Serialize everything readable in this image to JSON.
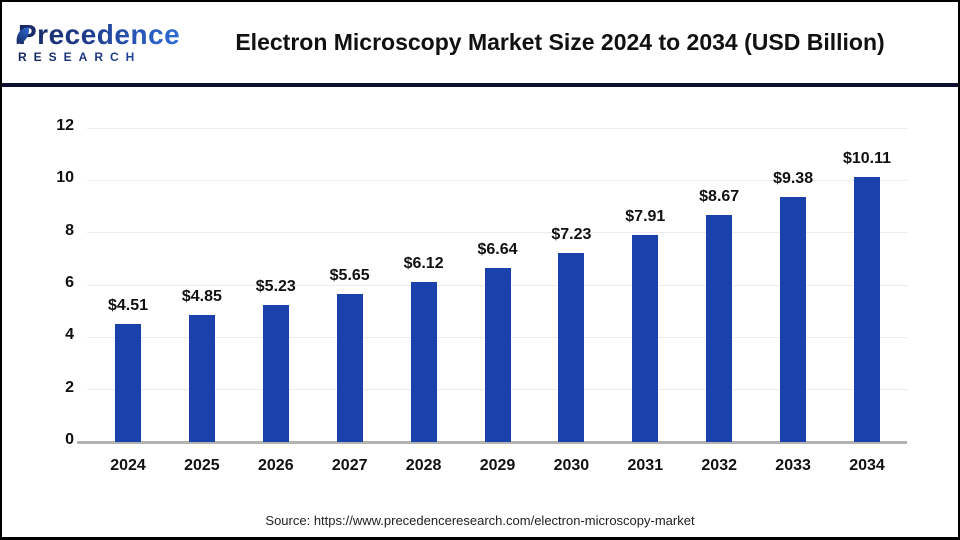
{
  "header": {
    "logo": {
      "line1": "Precedence",
      "line2": "RESEARCH"
    },
    "title": "Electron Microscopy Market Size 2024 to 2034 (USD Billion)"
  },
  "chart_data": {
    "type": "bar",
    "title": "Electron Microscopy Market Size 2024 to 2034 (USD Billion)",
    "categories": [
      "2024",
      "2025",
      "2026",
      "2027",
      "2028",
      "2029",
      "2030",
      "2031",
      "2032",
      "2033",
      "2034"
    ],
    "values": [
      4.51,
      4.85,
      5.23,
      5.65,
      6.12,
      6.64,
      7.23,
      7.91,
      8.67,
      9.38,
      10.11
    ],
    "value_labels": [
      "$4.51",
      "$4.85",
      "$5.23",
      "$5.65",
      "$6.12",
      "$6.64",
      "$7.23",
      "$7.91",
      "$8.67",
      "$9.38",
      "$10.11"
    ],
    "xlabel": "",
    "ylabel": "",
    "ylim": [
      0,
      12
    ],
    "yticks": [
      0,
      2,
      4,
      6,
      8,
      10,
      12
    ],
    "grid": true,
    "legend": false
  },
  "colors": {
    "bar": "#1b42ac",
    "divider": "#0c102e",
    "gridline": "#ececec",
    "baseline": "#b3b3b3",
    "logo_dark": "#16275f",
    "logo_light": "#2f6bd8"
  },
  "footer": {
    "source": "Source: https://www.precedenceresearch.com/electron-microscopy-market"
  }
}
